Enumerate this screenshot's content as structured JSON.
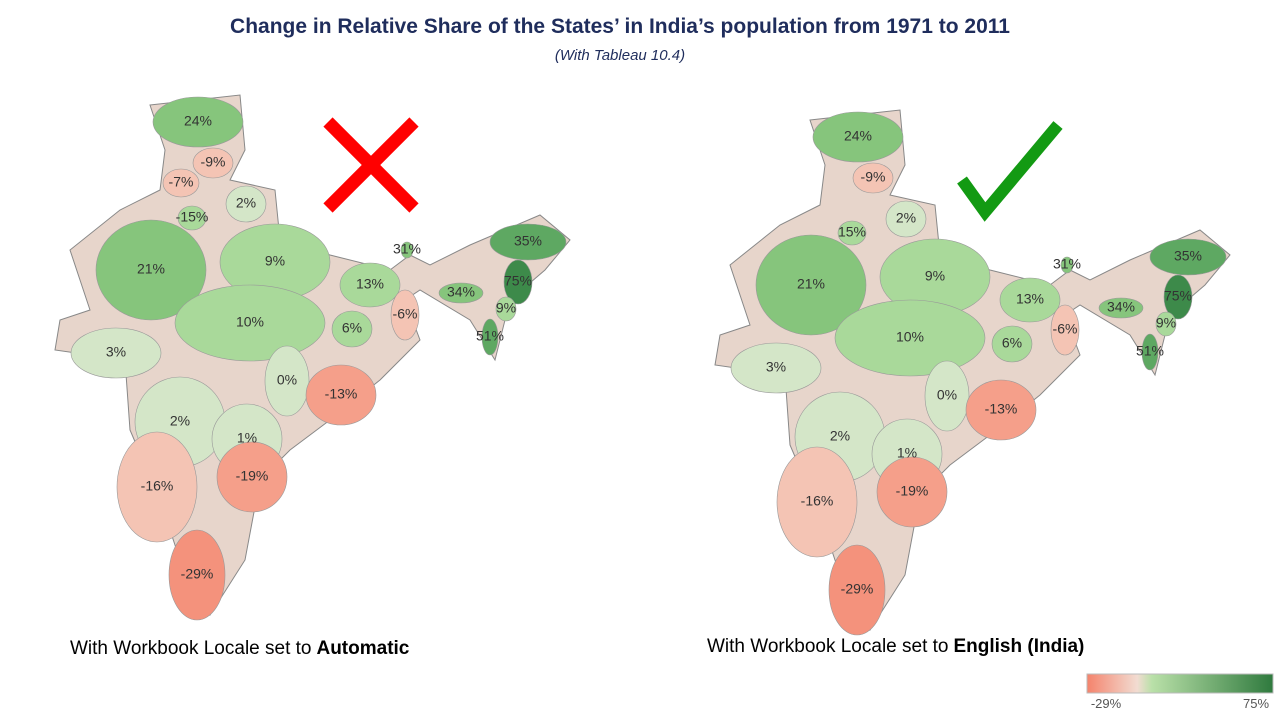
{
  "header": {
    "title": "Change in Relative Share of the States’ in India’s population from 1971 to 2011",
    "subtitle": "(With Tableau 10.4)"
  },
  "maps": [
    {
      "labels": [
        "24%",
        "-9%",
        "-7%",
        "2%",
        "-15%",
        "21%",
        "9%",
        "31%",
        "35%",
        "75%",
        "34%",
        "9%",
        "13%",
        "-6%",
        "51%",
        "10%",
        "6%",
        "3%",
        "0%",
        "-13%",
        "2%",
        "1%",
        "-19%",
        "-16%",
        "-29%"
      ],
      "caption": {
        "prefix": "With Workbook Locale set to",
        "emphasis": "Automatic"
      }
    },
    {
      "labels": [
        "24%",
        "-9%",
        "2%",
        "15%",
        "21%",
        "9%",
        "31%",
        "35%",
        "75%",
        "34%",
        "9%",
        "13%",
        "-6%",
        "51%",
        "10%",
        "6%",
        "3%",
        "0%",
        "-13%",
        "2%",
        "1%",
        "-19%",
        "-16%",
        "-29%"
      ],
      "caption": {
        "prefix": "With Workbook Locale set to",
        "emphasis": "English (India)"
      }
    }
  ],
  "legend": {
    "min_label": "-29%",
    "max_label": "75%"
  }
}
